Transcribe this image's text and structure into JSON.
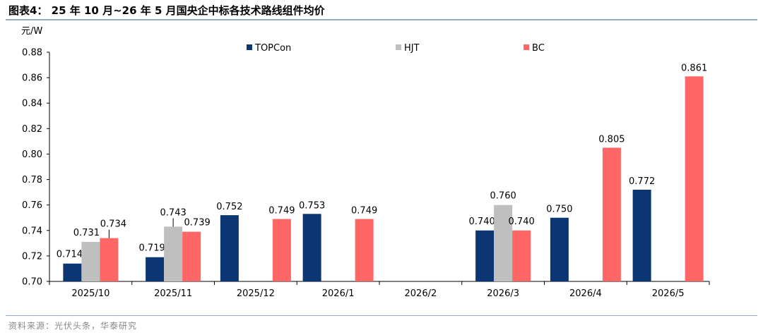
{
  "header": {
    "title": "图表4：  25 年 10 月~26 年 5 月国央企中标各技术路线组件均价"
  },
  "footer": {
    "source": "资料来源：光伏头条，华泰研究"
  },
  "colors": {
    "TOPCon": "#0b3573",
    "HJT": "#bfbfbf",
    "BC": "#ff6666",
    "rule": "#8ea9c8"
  },
  "chart_data": {
    "type": "bar",
    "ylabel": "元/W",
    "ylim": [
      0.7,
      0.88
    ],
    "ystep": 0.02,
    "yticks": [
      "0.70",
      "0.72",
      "0.74",
      "0.76",
      "0.78",
      "0.80",
      "0.82",
      "0.84",
      "0.86",
      "0.88"
    ],
    "legend_position": "top",
    "categories": [
      "2025/10",
      "2025/11",
      "2025/12",
      "2026/1",
      "2026/2",
      "2026/3",
      "2026/4",
      "2026/5"
    ],
    "series": [
      {
        "name": "TOPCon",
        "values": [
          0.714,
          0.719,
          0.752,
          0.753,
          null,
          0.74,
          0.75,
          0.772
        ],
        "labels": [
          "0.714",
          "0.719",
          "0.752",
          "0.753",
          "",
          "0.740",
          "0.750",
          "0.772"
        ]
      },
      {
        "name": "HJT",
        "values": [
          0.731,
          0.743,
          null,
          null,
          null,
          0.76,
          null,
          null
        ],
        "labels": [
          "0.731",
          "0.743",
          "",
          "",
          "",
          "0.760",
          "",
          ""
        ]
      },
      {
        "name": "BC",
        "values": [
          0.734,
          0.739,
          0.749,
          0.749,
          null,
          0.74,
          0.805,
          0.861
        ],
        "labels": [
          "0.734",
          "0.739",
          "0.749",
          "0.749",
          "",
          "0.740",
          "0.805",
          "0.861"
        ]
      }
    ]
  }
}
